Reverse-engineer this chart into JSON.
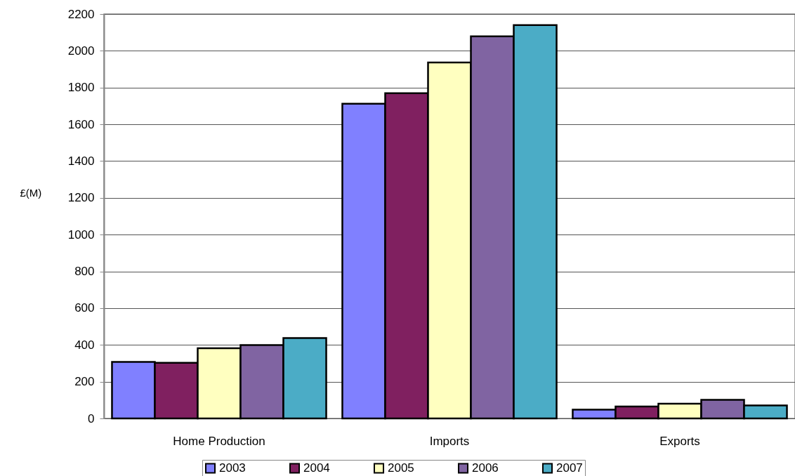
{
  "chart_data": {
    "type": "bar",
    "ylabel": "£(M)",
    "categories": [
      "Home Production",
      "Imports",
      "Exports"
    ],
    "series": [
      {
        "name": "2003",
        "color": "#8080ff",
        "values": [
          307,
          1712,
          48
        ]
      },
      {
        "name": "2004",
        "color": "#802060",
        "values": [
          303,
          1769,
          65
        ]
      },
      {
        "name": "2005",
        "color": "#ffffc0",
        "values": [
          382,
          1936,
          80
        ]
      },
      {
        "name": "2006",
        "color": "#8064a2",
        "values": [
          399,
          2079,
          101
        ]
      },
      {
        "name": "2007",
        "color": "#4bacc6",
        "values": [
          437,
          2140,
          71
        ]
      }
    ],
    "ylim": [
      0,
      2200
    ],
    "yticks": [
      0,
      200,
      400,
      600,
      800,
      1000,
      1200,
      1400,
      1600,
      1800,
      2000,
      2200
    ],
    "grid": "y",
    "legend": "bottom"
  }
}
